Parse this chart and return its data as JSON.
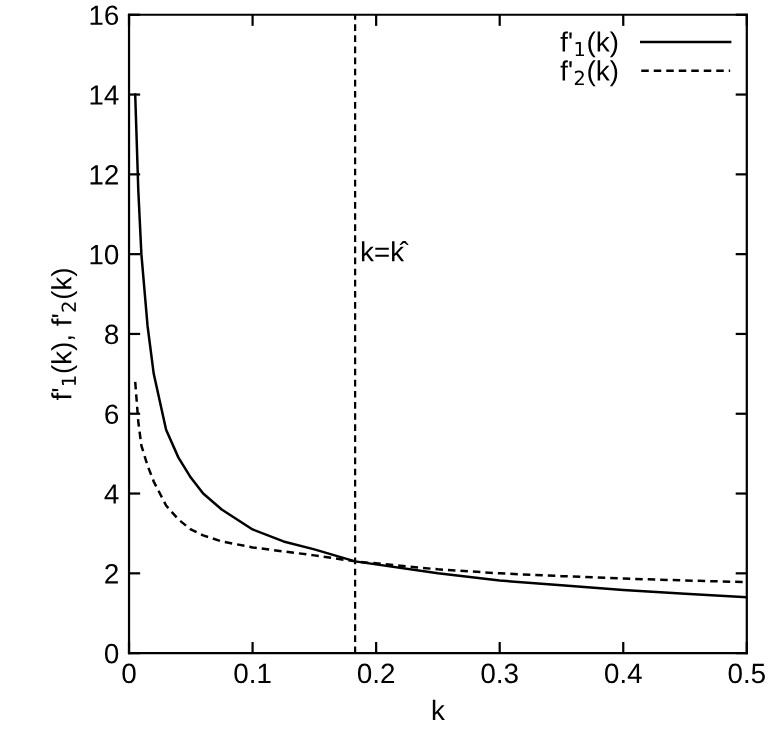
{
  "chart_data": {
    "type": "line",
    "xlabel": "k",
    "ylabel": "f'$_{1}$(k), f'$_{2}$(k)",
    "xlim": [
      0,
      0.5
    ],
    "ylim": [
      0,
      16
    ],
    "xticks": [
      0,
      0.1,
      0.2,
      0.3,
      0.4,
      0.5
    ],
    "yticks": [
      0,
      2,
      4,
      6,
      8,
      10,
      12,
      14,
      16
    ],
    "grid": false,
    "legend": "top right",
    "marker": "none",
    "series": [
      {
        "name": "f'$_{1}$(k)",
        "color": "#000000",
        "line_style": "solid",
        "x": [
          0.005,
          0.0075,
          0.01,
          0.015,
          0.02,
          0.025,
          0.03,
          0.04,
          0.05,
          0.06,
          0.075,
          0.1,
          0.125,
          0.15,
          0.183,
          0.25,
          0.3,
          0.35,
          0.4,
          0.45,
          0.5
        ],
        "values": [
          14,
          11.6,
          10,
          8.2,
          7,
          6.3,
          5.6,
          4.9,
          4.4,
          4.0,
          3.6,
          3.1,
          2.8,
          2.6,
          2.3,
          2.0,
          1.82,
          1.7,
          1.58,
          1.49,
          1.4
        ]
      },
      {
        "name": "f'$_{2}$(k)",
        "color": "#000000",
        "line_style": "dashed",
        "x": [
          0.005,
          0.0075,
          0.01,
          0.015,
          0.02,
          0.025,
          0.03,
          0.04,
          0.05,
          0.06,
          0.075,
          0.1,
          0.125,
          0.15,
          0.183,
          0.25,
          0.3,
          0.35,
          0.4,
          0.45,
          0.5
        ],
        "values": [
          6.8,
          5.8,
          5.2,
          4.7,
          4.3,
          4.0,
          3.7,
          3.35,
          3.1,
          2.95,
          2.8,
          2.65,
          2.55,
          2.45,
          2.3,
          2.1,
          2.0,
          1.93,
          1.87,
          1.82,
          1.78
        ]
      }
    ],
    "ref_lines": [
      {
        "axis": "x",
        "value": 0.183,
        "label": "k=k̂",
        "line_style": "dashed",
        "color": "#000000"
      }
    ]
  }
}
